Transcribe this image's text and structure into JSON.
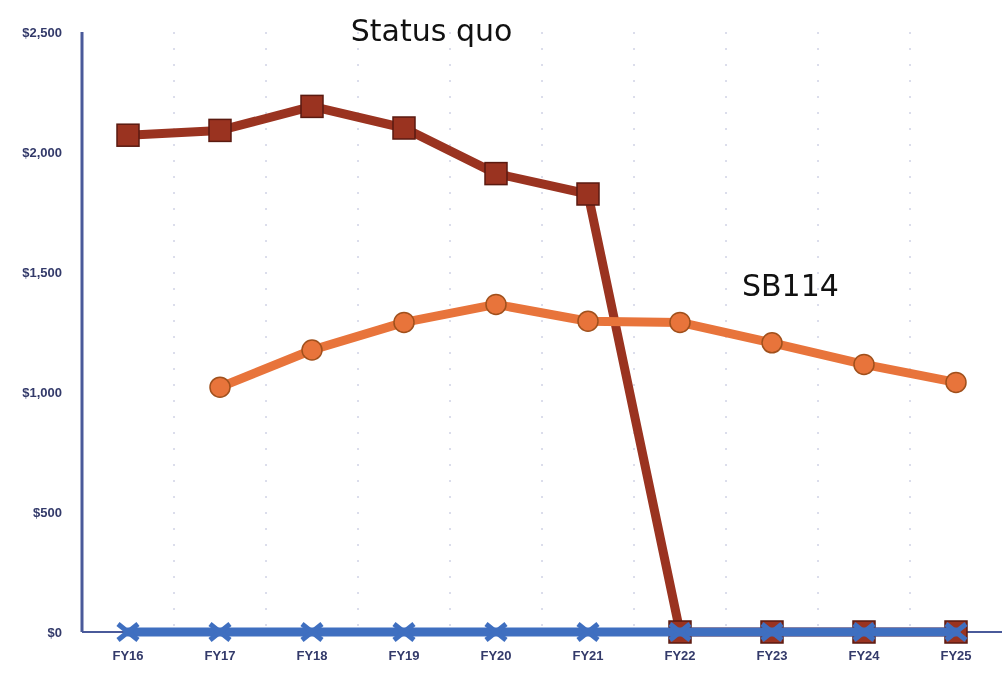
{
  "chart_data": {
    "type": "line",
    "categories": [
      "FY16",
      "FY17",
      "FY18",
      "FY19",
      "FY20",
      "FY21",
      "FY22",
      "FY23",
      "FY24",
      "FY25"
    ],
    "series": [
      {
        "name": "Status quo",
        "color": "#9a3320",
        "marker": "square",
        "values": [
          2070,
          2090,
          2190,
          2100,
          1910,
          1825,
          0,
          0,
          0,
          0
        ]
      },
      {
        "name": "SB114",
        "color": "#e8743b",
        "marker": "circle",
        "values": [
          null,
          1020,
          1175,
          1290,
          1365,
          1295,
          1290,
          1205,
          1115,
          1040
        ]
      },
      {
        "color": "#3f6fc0",
        "marker": "cross",
        "values": [
          0,
          0,
          0,
          0,
          0,
          0,
          0,
          0,
          0,
          0
        ]
      }
    ],
    "ylim": [
      0,
      2500
    ],
    "yticks": [
      {
        "value": 0,
        "label": "$0"
      },
      {
        "value": 500,
        "label": "$500"
      },
      {
        "value": 1000,
        "label": "$1,000"
      },
      {
        "value": 1500,
        "label": "$1,500"
      },
      {
        "value": 2000,
        "label": "$2,000"
      },
      {
        "value": 2500,
        "label": "$2,500"
      }
    ],
    "grid": "x"
  }
}
